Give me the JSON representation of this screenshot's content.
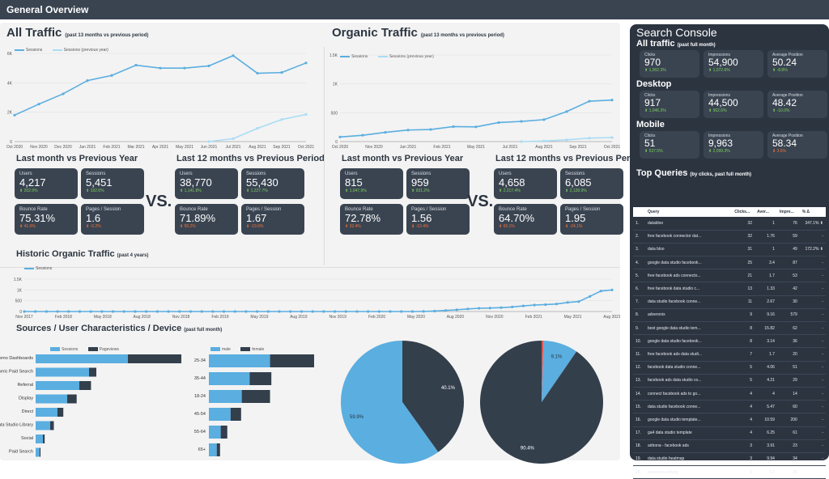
{
  "header": {
    "title": "General Overview"
  },
  "colors": {
    "primary": "#5aaee0",
    "light": "#a9dcf5",
    "dark": "#343f4c",
    "up": "#7ccf5c",
    "down": "#f0743e"
  },
  "all_traffic": {
    "title": "All Traffic",
    "subtitle": "(past 13 months vs previous period)",
    "legend": [
      "Sessions",
      "Sessions (previous year)"
    ]
  },
  "organic_traffic": {
    "title": "Organic Traffic",
    "subtitle": "(past 13 months vs previous period)",
    "legend": [
      "Sessions",
      "Sessions (previous year)"
    ]
  },
  "vs_label": "VS.",
  "all_last_month": {
    "title": "Last month vs Previous Year",
    "cards": [
      {
        "label": "Users",
        "value": "4,217",
        "change": "⬆ 202.9%",
        "dir": "up"
      },
      {
        "label": "Sessions",
        "value": "5,451",
        "change": "⬆ 192.6%",
        "dir": "up"
      },
      {
        "label": "Bounce Rate",
        "value": "75.31%",
        "change": "⬆ 41.6%",
        "dir": "down"
      },
      {
        "label": "Pages / Session",
        "value": "1.6",
        "change": "⬇ -6.2%",
        "dir": "down"
      }
    ]
  },
  "all_last_12": {
    "title": "Last 12 months vs Previous Period",
    "cards": [
      {
        "label": "Users",
        "value": "38,770",
        "change": "⬆ 1,141.8%",
        "dir": "up"
      },
      {
        "label": "Sessions",
        "value": "55,430",
        "change": "⬆ 1,227.7%",
        "dir": "up"
      },
      {
        "label": "Bounce Rate",
        "value": "71.89%",
        "change": "⬆ 50.2%",
        "dir": "down"
      },
      {
        "label": "Pages / Session",
        "value": "1.67",
        "change": "⬇ -19.6%",
        "dir": "down"
      }
    ]
  },
  "org_last_month": {
    "title": "Last month vs Previous Year",
    "cards": [
      {
        "label": "Users",
        "value": "815",
        "change": "⬆ 1,047.9%",
        "dir": "up"
      },
      {
        "label": "Sessions",
        "value": "959",
        "change": "⬆ 931.2%",
        "dir": "up"
      },
      {
        "label": "Bounce Rate",
        "value": "72.78%",
        "change": "⬆ 32.4%",
        "dir": "down"
      },
      {
        "label": "Pages / Session",
        "value": "1.56",
        "change": "⬇ -10.4%",
        "dir": "down"
      }
    ]
  },
  "org_last_12": {
    "title": "Last 12 months vs Previous Period",
    "cards": [
      {
        "label": "Users",
        "value": "4,658",
        "change": "⬆ 2,217.4%",
        "dir": "up"
      },
      {
        "label": "Sessions",
        "value": "6,085",
        "change": "⬆ 2,128.9%",
        "dir": "up"
      },
      {
        "label": "Bounce Rate",
        "value": "64.70%",
        "change": "⬆ 65.1%",
        "dir": "down"
      },
      {
        "label": "Pages / Session",
        "value": "1.95",
        "change": "⬇ -24.1%",
        "dir": "down"
      }
    ]
  },
  "historic": {
    "title": "Historic Organic Traffic",
    "subtitle": "(past 4 years)",
    "legend": "Sessions"
  },
  "sources": {
    "title": "Sources / User Characteristics / Device",
    "subtitle": "(past full month)",
    "legend": [
      "Sessions",
      "Pageviews"
    ],
    "age_legend": [
      "male",
      "female"
    ]
  },
  "search_console": {
    "title": "Search Console",
    "sections": [
      {
        "title": "All traffic",
        "subtitle": "(past full month)",
        "cards": [
          {
            "label": "Clicks",
            "value": "970",
            "change": "⬆ 1,002.3%",
            "dir": "up"
          },
          {
            "label": "Impressions",
            "value": "54,900",
            "change": "⬆ 1,072.6%",
            "dir": "up"
          },
          {
            "label": "Average Position",
            "value": "50.24",
            "change": "⬆ -8.8%",
            "dir": "up"
          }
        ]
      },
      {
        "title": "Desktop",
        "subtitle": "",
        "cards": [
          {
            "label": "Clicks",
            "value": "917",
            "change": "⬆ 1,046.3%",
            "dir": "up"
          },
          {
            "label": "Impressions",
            "value": "44,500",
            "change": "⬆ 962.6%",
            "dir": "up"
          },
          {
            "label": "Average Position",
            "value": "48.42",
            "change": "⬆ -10.0%",
            "dir": "up"
          }
        ]
      },
      {
        "title": "Mobile",
        "subtitle": "",
        "cards": [
          {
            "label": "Clicks",
            "value": "51",
            "change": "⬆ 537.5%",
            "dir": "up"
          },
          {
            "label": "Impressions",
            "value": "9,963",
            "change": "⬆ 2,099.3%",
            "dir": "up"
          },
          {
            "label": "Average Position",
            "value": "58.34",
            "change": "⬇ 3.6%",
            "dir": "down"
          }
        ]
      }
    ],
    "top_queries": {
      "title": "Top Queries",
      "subtitle": "(by clicks, past full month)",
      "headers": [
        "",
        "Query",
        "Clicks...",
        "Aver...",
        "Impre...",
        "% Δ"
      ],
      "rows": [
        [
          "1.",
          "databloo",
          "32",
          "1",
          "76",
          "347.1% ⬆"
        ],
        [
          "2.",
          "free facebook connector dat...",
          "32",
          "1.76",
          "59",
          "-"
        ],
        [
          "3.",
          "data bloo",
          "31",
          "1",
          "49",
          "172.2% ⬆"
        ],
        [
          "4.",
          "google data studio facebook...",
          "25",
          "3.4",
          "87",
          "-"
        ],
        [
          "5.",
          "free facebook ads connecto...",
          "21",
          "1.7",
          "53",
          "-"
        ],
        [
          "6.",
          "free facebook data studio c...",
          "13",
          "1.33",
          "42",
          "-"
        ],
        [
          "7.",
          "data studio facebook conne...",
          "11",
          "2.67",
          "30",
          "-"
        ],
        [
          "8.",
          "adveronix",
          "9",
          "9.16",
          "579",
          "-"
        ],
        [
          "9.",
          "best google data studio tem...",
          "8",
          "15.82",
          "62",
          "-"
        ],
        [
          "10.",
          "google data studio facebook...",
          "8",
          "3.14",
          "36",
          "-"
        ],
        [
          "11.",
          "free facebook ads data studi...",
          "7",
          "1.7",
          "20",
          "-"
        ],
        [
          "12.",
          "facebook data studio conne...",
          "5",
          "4.06",
          "51",
          "-"
        ],
        [
          "13.",
          "facebook ads data studio co...",
          "5",
          "4.21",
          "29",
          "-"
        ],
        [
          "14.",
          "connect facebook ads to go...",
          "4",
          "4",
          "14",
          "-"
        ],
        [
          "15.",
          "data studio facebook conne...",
          "4",
          "5.47",
          "60",
          "-"
        ],
        [
          "16.",
          "google data studio template...",
          "4",
          "10.59",
          "200",
          "-"
        ],
        [
          "17.",
          "ga4 data studio template",
          "4",
          "6.25",
          "61",
          "-"
        ],
        [
          "18.",
          "airbona - facebook ads",
          "3",
          "3.91",
          "23",
          "-"
        ],
        [
          "19.",
          "data studio heatmap",
          "3",
          "9.94",
          "34",
          "-"
        ],
        [
          "20.",
          "adveronix pricing",
          "3",
          "7.2",
          "35",
          "-"
        ]
      ]
    }
  },
  "chart_data": [
    {
      "type": "line",
      "title": "All Traffic",
      "x": [
        "Oct 2020",
        "Nov 2020",
        "Dec 2020",
        "Jan 2021",
        "Feb 2021",
        "Mar 2021",
        "Apr 2021",
        "May 2021",
        "Jun 2021",
        "Jul 2021",
        "Aug 2021",
        "Sep 2021",
        "Oct 2021"
      ],
      "y_ticks": [
        "0",
        "2K",
        "4K",
        "6K"
      ],
      "ylim": [
        0,
        6000
      ],
      "series": [
        {
          "name": "Sessions",
          "values": [
            1800,
            2550,
            3250,
            4150,
            4500,
            5200,
            5000,
            5000,
            5150,
            5850,
            4650,
            4700,
            5350
          ]
        },
        {
          "name": "Sessions (previous year)",
          "values": [
            null,
            null,
            null,
            null,
            null,
            null,
            null,
            null,
            0,
            200,
            900,
            1500,
            1850
          ]
        }
      ]
    },
    {
      "type": "line",
      "title": "Organic Traffic",
      "x": [
        "Oct 2020",
        "Nov 2020",
        "Dec 2020",
        "Jan 2021",
        "Feb 2021",
        "Mar 2021",
        "Apr 2021",
        "May 2021",
        "Jun 2021",
        "Jul 2021",
        "Aug 2021",
        "Sep 2021",
        "Oct 2021"
      ],
      "x_labels": [
        "Oct 2020",
        "Nov 2020",
        "Jan 2021",
        "Feb 2021",
        "May 2021",
        "Jul 2021",
        "Aug 2021",
        "Sep 2021",
        "Oct 2021"
      ],
      "y_ticks": [
        "0",
        "500",
        "1K",
        "1.5K"
      ],
      "ylim": [
        0,
        1500
      ],
      "series": [
        {
          "name": "Sessions",
          "values": [
            80,
            110,
            160,
            200,
            210,
            260,
            255,
            330,
            350,
            380,
            520,
            700,
            720
          ]
        },
        {
          "name": "Sessions (previous year)",
          "values": [
            null,
            null,
            null,
            null,
            null,
            null,
            null,
            null,
            0,
            10,
            30,
            60,
            70
          ]
        }
      ]
    },
    {
      "type": "line",
      "title": "Historic Organic Traffic",
      "x_labels": [
        "Nov 2017",
        "Feb 2018",
        "May 2018",
        "Aug 2018",
        "Nov 2018",
        "Feb 2019",
        "May 2019",
        "Aug 2019",
        "Nov 2019",
        "Feb 2020",
        "May 2020",
        "Aug 2020",
        "Nov 2020",
        "Feb 2021",
        "May 2021",
        "Aug 2021"
      ],
      "y_ticks": [
        "0",
        "500",
        "1K",
        "1.5K"
      ],
      "ylim": [
        0,
        1500
      ],
      "series": [
        {
          "name": "Sessions",
          "values": [
            0,
            0,
            0,
            0,
            0,
            0,
            0,
            0,
            0,
            0,
            0,
            0,
            0,
            0,
            0,
            0,
            0,
            0,
            0,
            0,
            0,
            0,
            0,
            0,
            0,
            0,
            0,
            0,
            0,
            0,
            0,
            0,
            0,
            0,
            0,
            0,
            5,
            20,
            50,
            80,
            120,
            150,
            160,
            180,
            210,
            260,
            300,
            320,
            350,
            420,
            460,
            700,
            950,
            1000
          ]
        }
      ]
    },
    {
      "type": "bar",
      "orientation": "horizontal",
      "title": "Sources",
      "categories": [
        "Demo Dashboards",
        "Generic Paid Search",
        "Referral",
        "Display",
        "Direct",
        "Data Studio Library",
        "Social",
        "Paid Search"
      ],
      "series": [
        {
          "name": "Sessions",
          "values": [
            1900,
            1100,
            900,
            650,
            450,
            300,
            150,
            80
          ]
        },
        {
          "name": "Pageviews",
          "values": [
            3000,
            1250,
            800,
            650,
            400,
            250,
            120,
            70
          ]
        }
      ]
    },
    {
      "type": "bar",
      "orientation": "horizontal",
      "title": "Age",
      "categories": [
        "25-34",
        "35-44",
        "18-24",
        "45-54",
        "55-64",
        "65+"
      ],
      "series": [
        {
          "name": "male",
          "values": [
            930,
            620,
            500,
            330,
            180,
            120
          ]
        },
        {
          "name": "female",
          "values": [
            670,
            330,
            430,
            160,
            100,
            50
          ]
        }
      ]
    },
    {
      "type": "pie",
      "title": "User type",
      "slices": [
        {
          "label": "59.9%",
          "value": 59.9,
          "color": "#5aaee0"
        },
        {
          "label": "40.1%",
          "value": 40.1,
          "color": "#343f4c"
        }
      ]
    },
    {
      "type": "pie",
      "title": "Device",
      "slices": [
        {
          "label": "9.1%",
          "value": 9.1,
          "color": "#5aaee0"
        },
        {
          "label": "90.4%",
          "value": 90.4,
          "color": "#343f4c"
        },
        {
          "label": "",
          "value": 0.5,
          "color": "#d9534f"
        }
      ]
    }
  ]
}
